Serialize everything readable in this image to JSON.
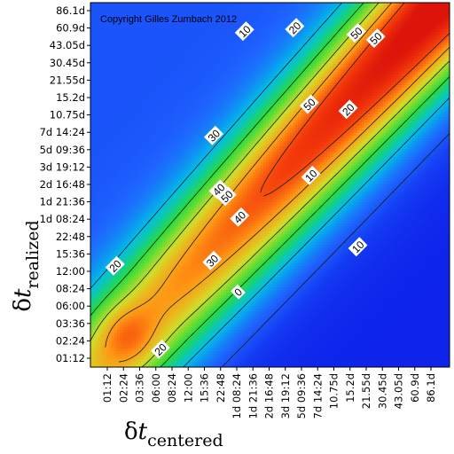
{
  "copyright": "Copyright Gilles Zumbach 2012",
  "chart_data": {
    "type": "heatmap",
    "xlabel": {
      "symbol": "δ",
      "var": "t",
      "sub": "centered"
    },
    "ylabel": {
      "symbol": "δ",
      "var": "t",
      "sub": "realized"
    },
    "x_ticks": [
      "01:12",
      "02:24",
      "03:36",
      "06:00",
      "08:24",
      "12:00",
      "15:36",
      "22:48",
      "1d 08:24",
      "1d 21:36",
      "2d 16:48",
      "3d 19:12",
      "5d 09:36",
      "7d 14:24",
      "10.75d",
      "15.2d",
      "21.55d",
      "30.45d",
      "43.05d",
      "60.9d",
      "86.1d"
    ],
    "y_ticks": [
      "01:12",
      "02:24",
      "03:36",
      "06:00",
      "08:24",
      "12:00",
      "15:36",
      "22:48",
      "1d 08:24",
      "1d 21:36",
      "2d 16:48",
      "3d 19:12",
      "5d 09:36",
      "7d 14:24",
      "10.75d",
      "15.2d",
      "21.55d",
      "30.45d",
      "43.05d",
      "60.9d",
      "86.1d"
    ],
    "contour_levels": [
      0,
      10,
      20,
      30,
      40,
      50
    ],
    "contour_labels": [
      {
        "text": "10",
        "x": 8.5,
        "y": 18.8
      },
      {
        "text": "20",
        "x": 11.6,
        "y": 19.0
      },
      {
        "text": "50",
        "x": 15.4,
        "y": 18.7
      },
      {
        "text": "50",
        "x": 16.6,
        "y": 18.4
      },
      {
        "text": "30",
        "x": 6.6,
        "y": 12.8
      },
      {
        "text": "40",
        "x": 6.9,
        "y": 9.7
      },
      {
        "text": "50",
        "x": 7.4,
        "y": 9.3
      },
      {
        "text": "40",
        "x": 8.2,
        "y": 8.1
      },
      {
        "text": "30",
        "x": 6.5,
        "y": 5.6
      },
      {
        "text": "50",
        "x": 12.5,
        "y": 14.6
      },
      {
        "text": "20",
        "x": 14.9,
        "y": 14.3
      },
      {
        "text": "10",
        "x": 12.6,
        "y": 10.5
      },
      {
        "text": "0",
        "x": 8.1,
        "y": 3.8
      },
      {
        "text": "10",
        "x": 15.5,
        "y": 6.4
      },
      {
        "text": "20",
        "x": 0.5,
        "y": 5.3
      },
      {
        "text": "20",
        "x": 3.3,
        "y": 0.5
      }
    ]
  }
}
